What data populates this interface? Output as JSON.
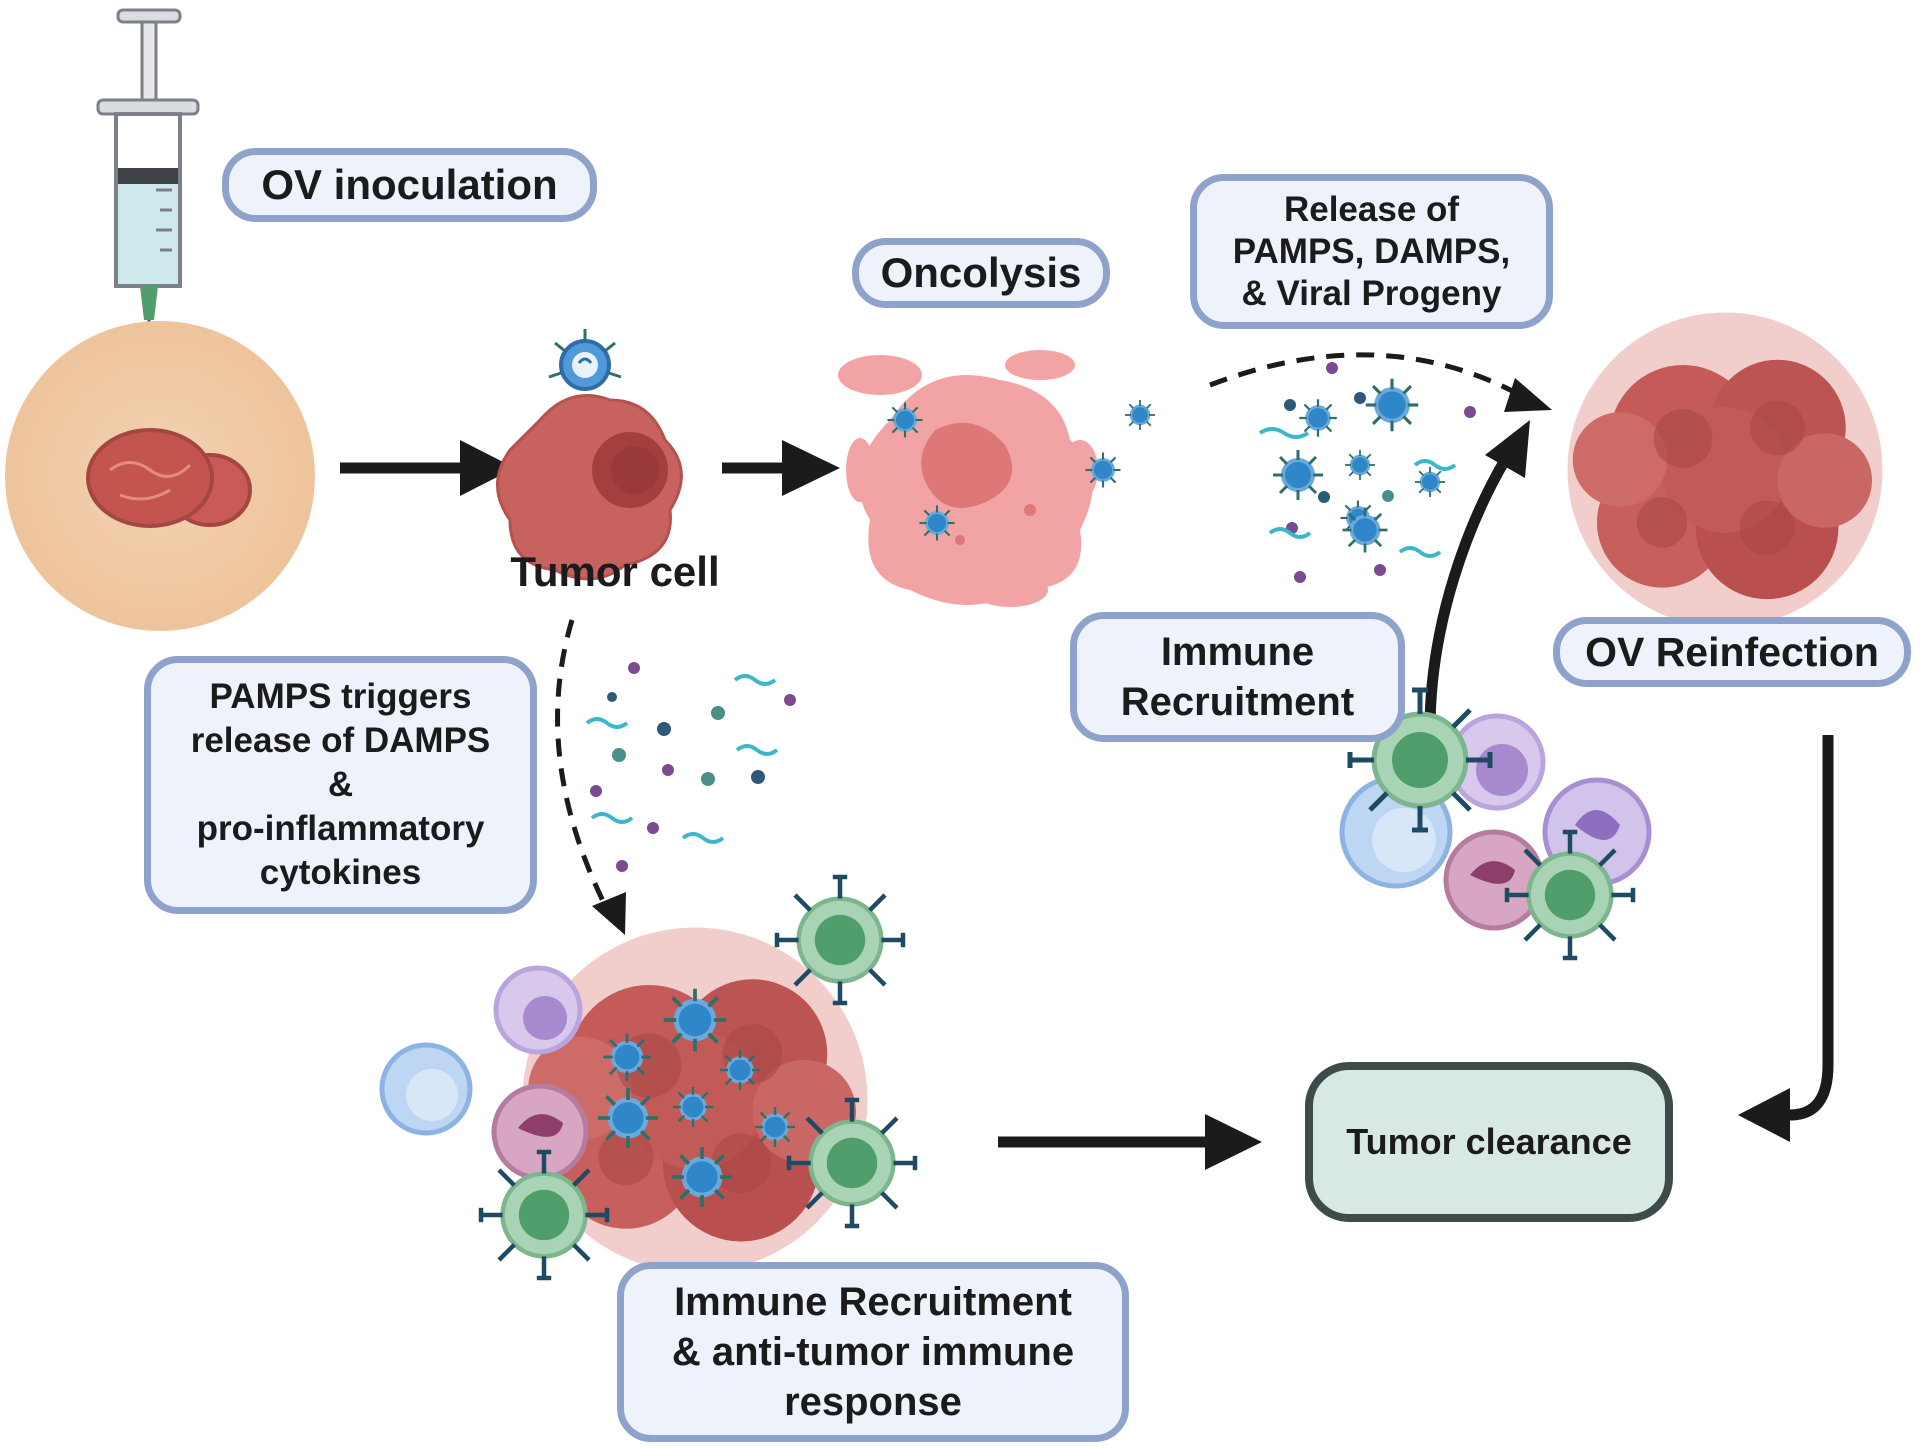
{
  "labels": {
    "ov_inoculation": "OV inoculation",
    "tumor_cell": "Tumor cell",
    "oncolysis": "Oncolysis",
    "release_of": "Release of\nPAMPS, DAMPS,\n& Viral Progeny",
    "ov_reinfection": "OV Reinfection",
    "immune_recruitment_top": "Immune\nRecruitment",
    "pamps_triggers": "PAMPS triggers\nrelease of DAMPS\n&\npro-inflammatory\ncytokines",
    "immune_recruitment_bottom": "Immune Recruitment\n& anti-tumor immune\nresponse",
    "tumor_clearance": "Tumor clearance"
  },
  "colors": {
    "label_fill": "#eef3fb",
    "label_border": "#8fa2cc",
    "clearance_fill": "#d8e8e2",
    "clearance_border": "#3d4b4a",
    "tumor": "#c8625f",
    "lysis": "#f2a4a4",
    "virus": "#2f86c9",
    "t_cell": "#7cbf8e",
    "skin": "#f1ceaa"
  }
}
